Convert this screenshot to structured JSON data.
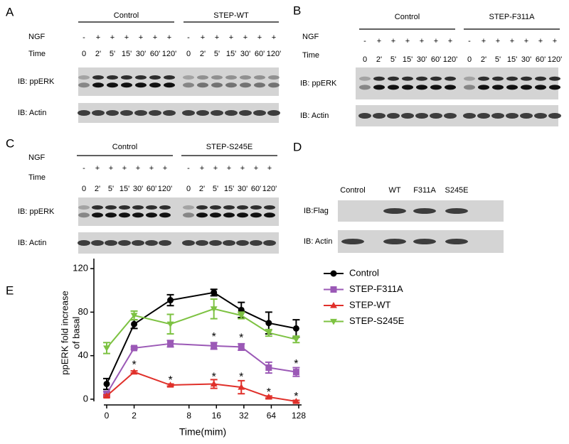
{
  "blot_panels": [
    {
      "letter": "A",
      "groups": [
        "Control",
        "STEP-WT"
      ],
      "row_labels": [
        "NGF",
        "Time"
      ],
      "ngf": [
        "-",
        "+",
        "+",
        "+",
        "+",
        "+",
        "+",
        "-",
        "+",
        "+",
        "+",
        "+",
        "+",
        "+"
      ],
      "times": [
        "0",
        "2'",
        "5'",
        "15'",
        "30'",
        "60'",
        "120'",
        "0",
        "2'",
        "5'",
        "15'",
        "30'",
        "60'",
        "120'"
      ],
      "blots": [
        "IB: ppERK",
        "IB: Actin"
      ]
    },
    {
      "letter": "B",
      "groups": [
        "Control",
        "STEP-F311A"
      ],
      "row_labels": [
        "NGF",
        "Time"
      ],
      "ngf": [
        "-",
        "+",
        "+",
        "+",
        "+",
        "+",
        "+",
        "-",
        "+",
        "+",
        "+",
        "+",
        "+",
        "+"
      ],
      "times": [
        "0",
        "2'",
        "5'",
        "15'",
        "30'",
        "60'",
        "120'",
        "0",
        "2'",
        "5'",
        "15'",
        "30'",
        "60'",
        "120'"
      ],
      "blots": [
        "IB: ppERK",
        "IB: Actin"
      ]
    },
    {
      "letter": "C",
      "groups": [
        "Control",
        "STEP-S245E"
      ],
      "row_labels": [
        "NGF",
        "Time"
      ],
      "ngf": [
        "-",
        "+",
        "+",
        "+",
        "+",
        "+",
        "+",
        "-",
        "+",
        "+",
        "+",
        "+",
        "+",
        "+"
      ],
      "times": [
        "0",
        "2'",
        "5'",
        "15'",
        "30'",
        "60'",
        "120'",
        "0",
        "2'",
        "5'",
        "15'",
        "30'",
        "60'",
        "120'"
      ],
      "blots": [
        "IB: ppERK",
        "IB: Actin"
      ]
    },
    {
      "letter": "D",
      "lanes": [
        "Control",
        "WT",
        "F311A",
        "S245E"
      ],
      "blots": [
        "IB:Flag",
        "IB: Actin"
      ]
    }
  ],
  "chart_data": {
    "type": "line",
    "letter": "E",
    "x_label": "Time(mim)",
    "y_label": [
      "ppERK fold increase",
      "of basal"
    ],
    "x": [
      0,
      2,
      5,
      15,
      30,
      60,
      120
    ],
    "xscale": "log2",
    "xlim": [
      0,
      128
    ],
    "xticks": [
      0,
      2,
      8,
      16,
      32,
      64,
      128
    ],
    "ylim": [
      -2,
      124
    ],
    "yticks": [
      0,
      40,
      80,
      120
    ],
    "legend": "right",
    "series": [
      {
        "name": "Control",
        "color": "#000000",
        "marker": "circle",
        "values": [
          14,
          69,
          91,
          98,
          82,
          70,
          65
        ],
        "errors": [
          5,
          4,
          5,
          3,
          7,
          10,
          8
        ]
      },
      {
        "name": "STEP-F311A",
        "color": "#9b59b6",
        "marker": "square",
        "values": [
          5,
          47,
          51,
          49,
          48,
          29,
          25
        ],
        "errors": [
          2,
          1,
          3,
          3,
          3,
          5,
          4
        ]
      },
      {
        "name": "STEP-WT",
        "color": "#e0302a",
        "marker": "triangle-up",
        "values": [
          3,
          25,
          13,
          14,
          11,
          2,
          -2
        ],
        "errors": [
          1,
          1,
          1,
          4,
          6,
          1,
          1
        ]
      },
      {
        "name": "STEP-S245E",
        "color": "#7dc242",
        "marker": "triangle-down",
        "values": [
          47,
          77,
          69,
          83,
          77,
          61,
          55
        ],
        "errors": [
          5,
          4,
          9,
          9,
          3,
          3,
          3
        ]
      }
    ],
    "annotations": [
      {
        "text": "*",
        "x": 2,
        "y": 31
      },
      {
        "text": "*",
        "x": 5,
        "y": 17
      },
      {
        "text": "*",
        "x": 15,
        "y": 57
      },
      {
        "text": "*",
        "x": 15,
        "y": 20
      },
      {
        "text": "*",
        "x": 30,
        "y": 56
      },
      {
        "text": "*",
        "x": 30,
        "y": 20
      },
      {
        "text": "*",
        "x": 60,
        "y": 6
      },
      {
        "text": "*",
        "x": 120,
        "y": 32
      },
      {
        "text": "*",
        "x": 120,
        "y": 2
      }
    ]
  }
}
